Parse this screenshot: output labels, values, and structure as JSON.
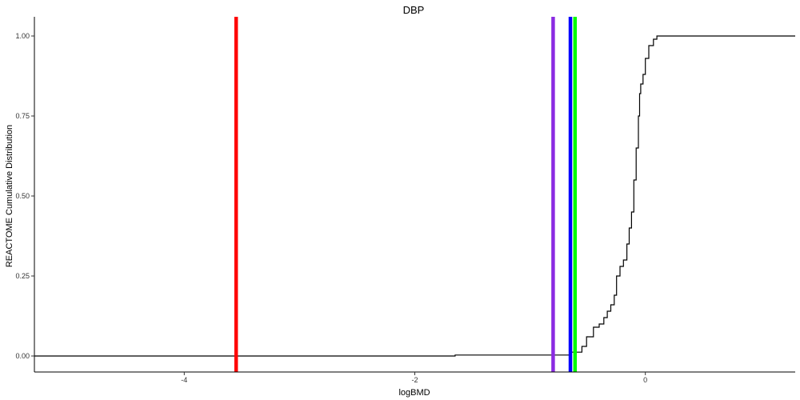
{
  "chart_data": {
    "type": "line",
    "title": "DBP",
    "xlabel": "logBMD",
    "ylabel": "REACTOME Cumulative Distribution",
    "xlim": [
      -5.3,
      1.3
    ],
    "ylim": [
      -0.05,
      1.05
    ],
    "x_ticks": [
      -4,
      -2,
      0
    ],
    "x_tick_labels": [
      "-4",
      "-2",
      "0"
    ],
    "y_ticks": [
      0,
      0.25,
      0.5,
      0.75,
      1
    ],
    "y_tick_labels": [
      "0.00",
      "0.25",
      "0.50",
      "0.75",
      "1.00"
    ],
    "grid": false,
    "legend": "none",
    "vertical_lines": [
      {
        "x": -3.55,
        "color": "#ff0000"
      },
      {
        "x": -0.8,
        "color": "#8a2be2"
      },
      {
        "x": -0.65,
        "color": "#0000ff"
      },
      {
        "x": -0.61,
        "color": "#00ff00"
      }
    ],
    "series": [
      {
        "color": "#000000",
        "step": true,
        "points": [
          [
            -5.3,
            0.0
          ],
          [
            -1.65,
            0.0
          ],
          [
            -1.65,
            0.003
          ],
          [
            -0.65,
            0.003
          ],
          [
            -0.65,
            0.012
          ],
          [
            -0.55,
            0.012
          ],
          [
            -0.55,
            0.03
          ],
          [
            -0.51,
            0.03
          ],
          [
            -0.51,
            0.06
          ],
          [
            -0.45,
            0.06
          ],
          [
            -0.45,
            0.09
          ],
          [
            -0.4,
            0.09
          ],
          [
            -0.4,
            0.1
          ],
          [
            -0.36,
            0.1
          ],
          [
            -0.36,
            0.12
          ],
          [
            -0.33,
            0.12
          ],
          [
            -0.33,
            0.14
          ],
          [
            -0.3,
            0.14
          ],
          [
            -0.3,
            0.16
          ],
          [
            -0.27,
            0.16
          ],
          [
            -0.27,
            0.19
          ],
          [
            -0.25,
            0.19
          ],
          [
            -0.25,
            0.25
          ],
          [
            -0.22,
            0.25
          ],
          [
            -0.22,
            0.28
          ],
          [
            -0.19,
            0.28
          ],
          [
            -0.19,
            0.3
          ],
          [
            -0.16,
            0.3
          ],
          [
            -0.16,
            0.35
          ],
          [
            -0.14,
            0.35
          ],
          [
            -0.14,
            0.4
          ],
          [
            -0.12,
            0.4
          ],
          [
            -0.12,
            0.45
          ],
          [
            -0.1,
            0.45
          ],
          [
            -0.1,
            0.55
          ],
          [
            -0.08,
            0.55
          ],
          [
            -0.08,
            0.65
          ],
          [
            -0.06,
            0.65
          ],
          [
            -0.06,
            0.75
          ],
          [
            -0.05,
            0.75
          ],
          [
            -0.05,
            0.82
          ],
          [
            -0.04,
            0.82
          ],
          [
            -0.04,
            0.85
          ],
          [
            -0.02,
            0.85
          ],
          [
            -0.02,
            0.88
          ],
          [
            0.0,
            0.88
          ],
          [
            0.0,
            0.93
          ],
          [
            0.03,
            0.93
          ],
          [
            0.03,
            0.97
          ],
          [
            0.07,
            0.97
          ],
          [
            0.07,
            0.99
          ],
          [
            0.1,
            0.99
          ],
          [
            0.1,
            1.0
          ],
          [
            1.3,
            1.0
          ]
        ]
      }
    ]
  }
}
